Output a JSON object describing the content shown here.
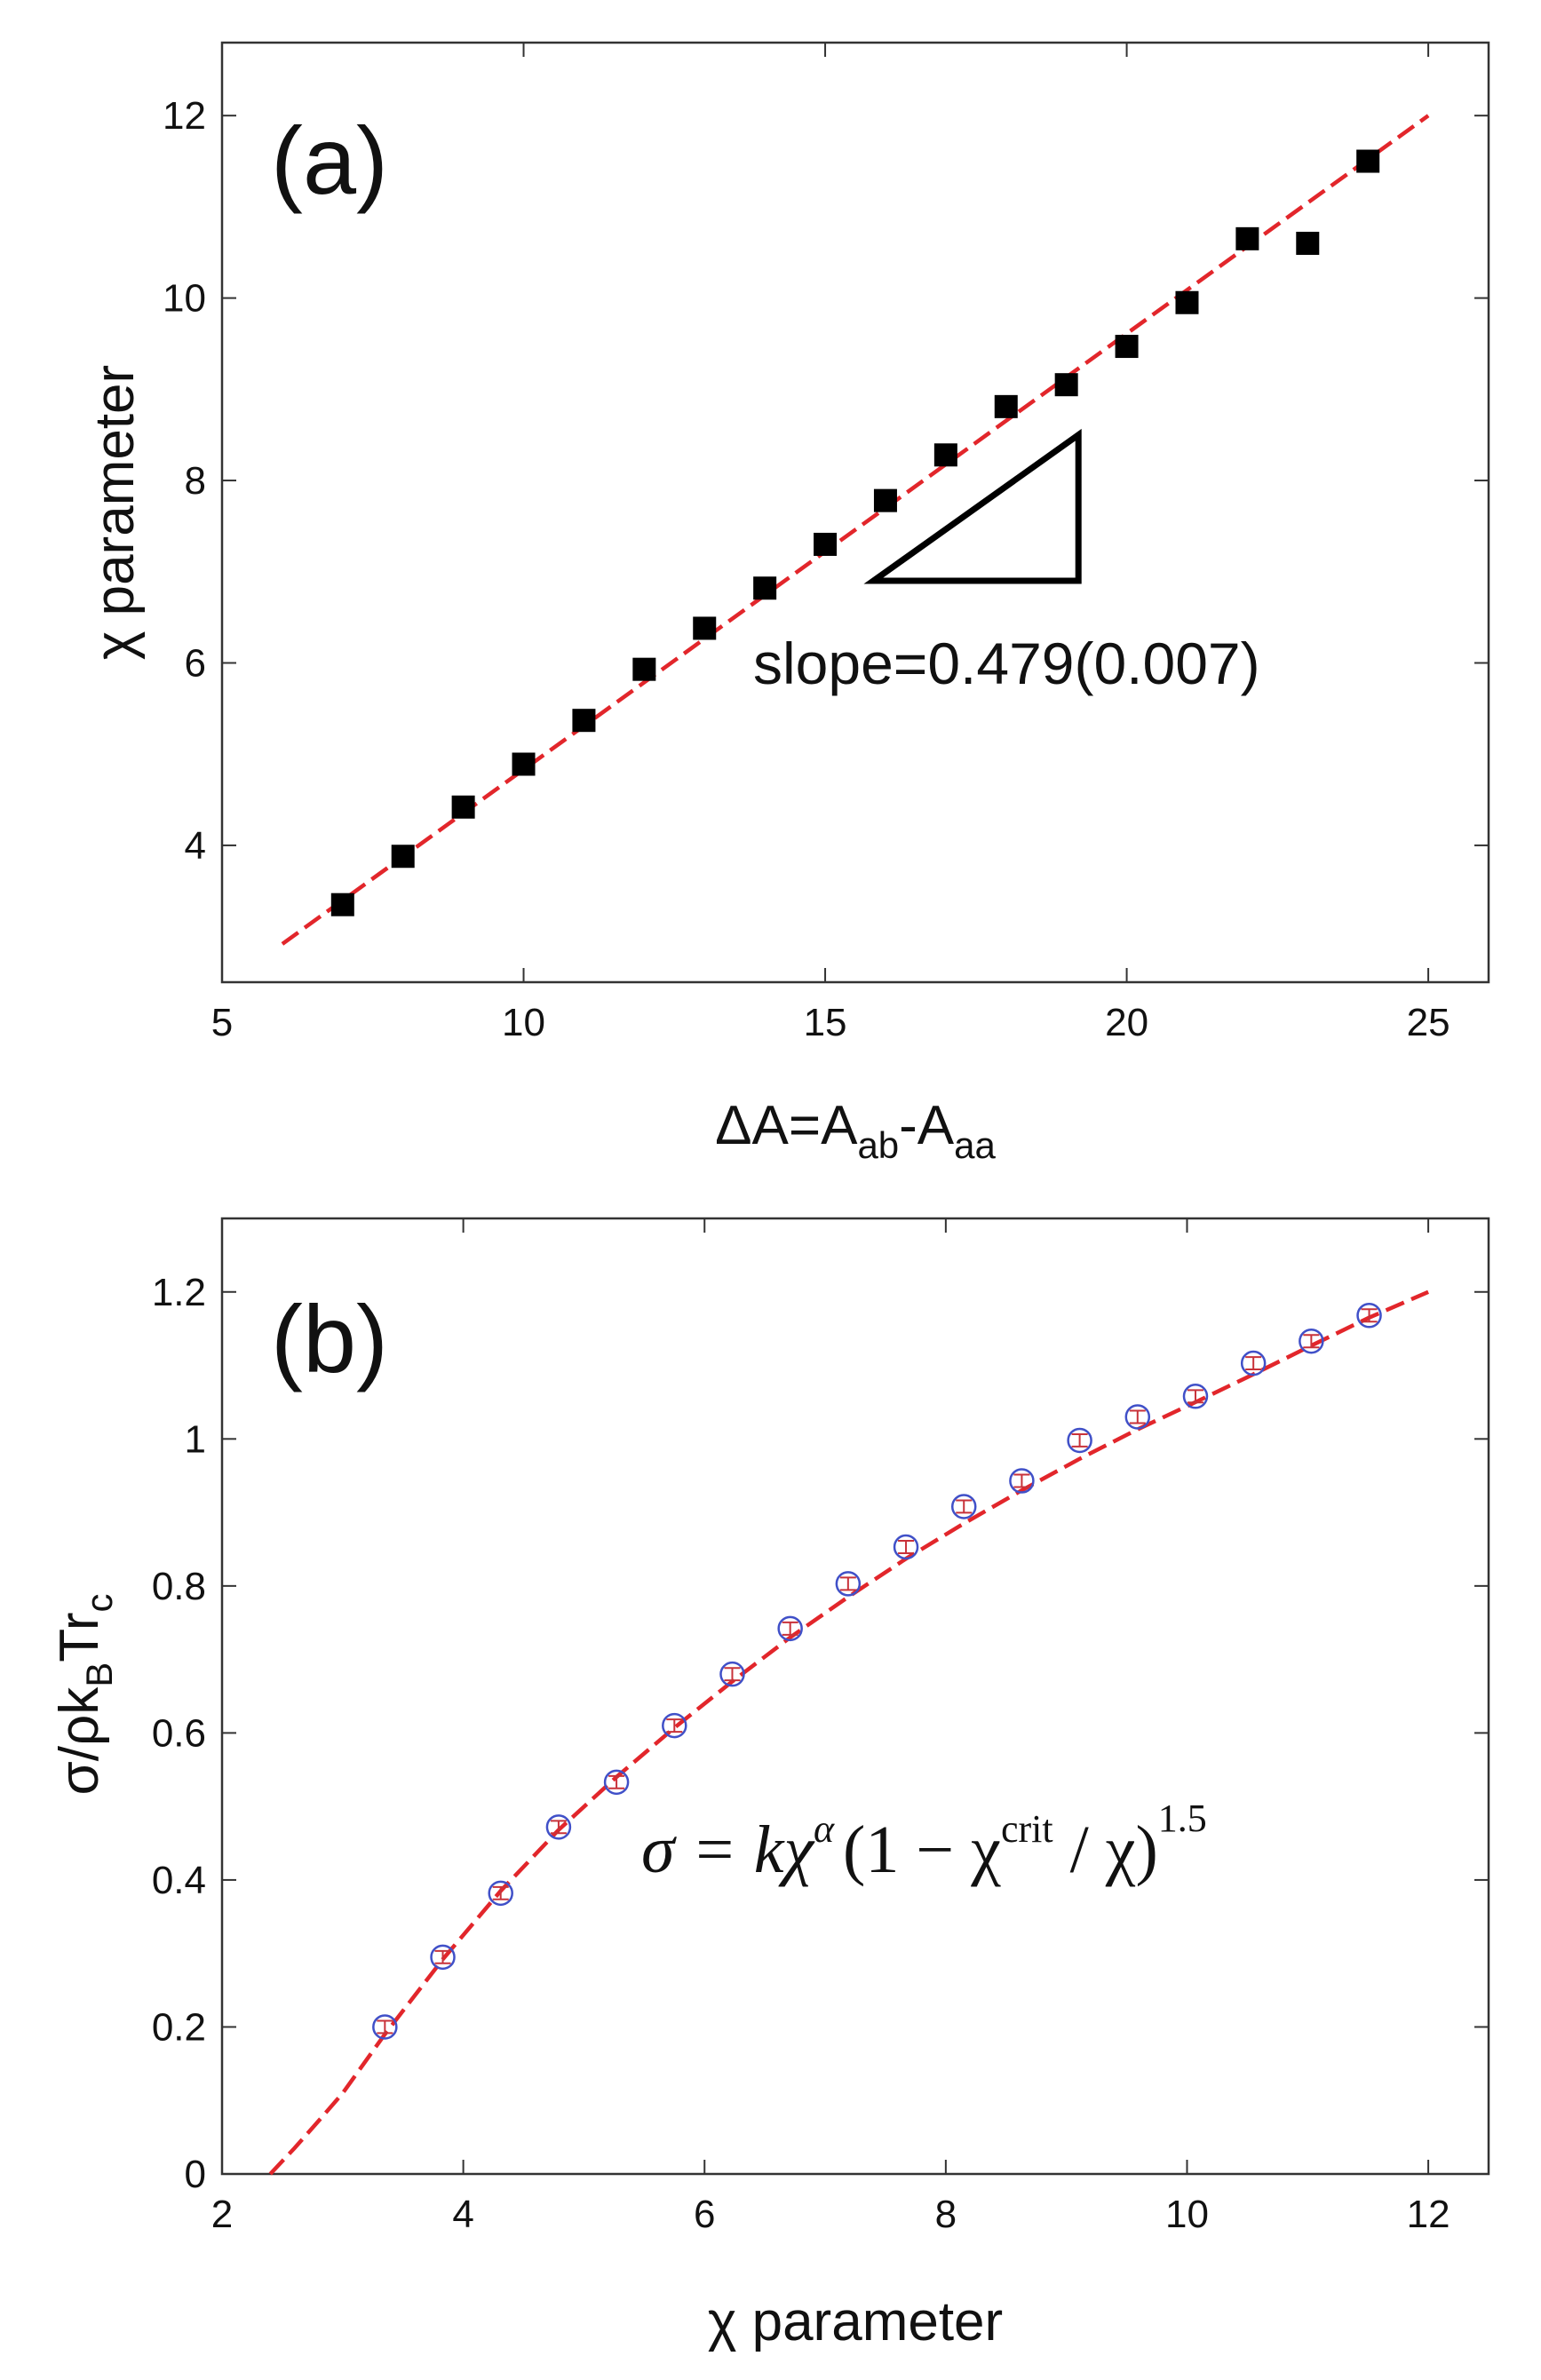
{
  "chart_data": [
    {
      "type": "scatter",
      "panel_label": "(a)",
      "title": "",
      "xlabel": "ΔA=A",
      "xlabel_sub1": "ab",
      "xlabel_mid": "-A",
      "xlabel_sub2": "aa",
      "ylabel": "χ parameter",
      "xlim": [
        5,
        26
      ],
      "ylim": [
        2.5,
        12.8
      ],
      "xticks": [
        5,
        10,
        15,
        20,
        25
      ],
      "yticks": [
        4,
        6,
        8,
        10,
        12
      ],
      "grid": false,
      "series": [
        {
          "name": "data",
          "marker": "square",
          "x": [
            7,
            8,
            9,
            10,
            11,
            12,
            13,
            14,
            15,
            16,
            17,
            18,
            19,
            20,
            21,
            22,
            23,
            24
          ],
          "y": [
            3.35,
            3.88,
            4.42,
            4.89,
            5.37,
            5.93,
            6.38,
            6.82,
            7.3,
            7.78,
            8.28,
            8.81,
            9.05,
            9.47,
            9.95,
            10.65,
            10.6,
            11.5
          ]
        },
        {
          "name": "fit",
          "style": "dashed",
          "color": "#e2262b",
          "x": [
            6,
            25
          ],
          "y": [
            2.92,
            12.0
          ]
        }
      ],
      "annotation": {
        "text": "slope=0.479(0.007)",
        "triangle_vertices": [
          [
            15.8,
            6.9
          ],
          [
            19.2,
            6.9
          ],
          [
            19.2,
            8.5
          ]
        ]
      }
    },
    {
      "type": "scatter",
      "panel_label": "(b)",
      "title": "",
      "xlabel": "χ parameter",
      "ylabel": "σ/ρk",
      "ylabel_sub1": "B",
      "ylabel_mid": "Tr",
      "ylabel_sub2": "c",
      "xlim": [
        2,
        12.5
      ],
      "ylim": [
        0,
        1.3
      ],
      "xticks": [
        2,
        4,
        6,
        8,
        10,
        12
      ],
      "yticks": [
        0,
        0.2,
        0.4,
        0.6,
        0.8,
        1.0
      ],
      "ytick_labels": [
        "0",
        "0.2",
        "0.4",
        "0.6",
        "0.8",
        "1",
        "1.2"
      ],
      "ytick_values": [
        0,
        0.2,
        0.4,
        0.6,
        0.8,
        1.0,
        1.2
      ],
      "grid": false,
      "series": [
        {
          "name": "data",
          "marker": "open-circle",
          "color": "#4050c8",
          "x": [
            3.35,
            3.83,
            4.31,
            4.79,
            5.27,
            5.75,
            6.23,
            6.71,
            7.19,
            7.67,
            8.15,
            8.63,
            9.11,
            9.59,
            10.07,
            10.55,
            11.03,
            11.51
          ],
          "y": [
            0.2,
            0.295,
            0.382,
            0.472,
            0.533,
            0.61,
            0.68,
            0.742,
            0.803,
            0.853,
            0.908,
            0.943,
            0.998,
            1.03,
            1.058,
            1.103,
            1.133,
            1.168
          ],
          "yerr": [
            0.006,
            0.006,
            0.006,
            0.006,
            0.006,
            0.006,
            0.006,
            0.006,
            0.006,
            0.006,
            0.006,
            0.006,
            0.006,
            0.006,
            0.006,
            0.006,
            0.006,
            0.006
          ]
        },
        {
          "name": "fit",
          "style": "dashed",
          "color": "#e2262b",
          "x": [
            2.4,
            2.6,
            2.8,
            3.0,
            3.35,
            3.83,
            4.31,
            4.79,
            5.27,
            5.75,
            6.23,
            6.71,
            7.19,
            7.67,
            8.15,
            8.63,
            9.11,
            9.59,
            10.07,
            10.55,
            11.03,
            11.51,
            12.0
          ],
          "y": [
            0.0,
            0.035,
            0.072,
            0.11,
            0.19,
            0.292,
            0.385,
            0.468,
            0.54,
            0.607,
            0.67,
            0.73,
            0.785,
            0.837,
            0.885,
            0.93,
            0.973,
            1.013,
            1.05,
            1.088,
            1.127,
            1.165,
            1.2
          ]
        }
      ],
      "annotation": {
        "eq_lhs": "σ = kχ",
        "eq_alpha": "α",
        "eq_mid": "(1 − χ",
        "eq_crit": "crit",
        "eq_tail": " / χ)",
        "eq_power": "1.5"
      }
    }
  ]
}
